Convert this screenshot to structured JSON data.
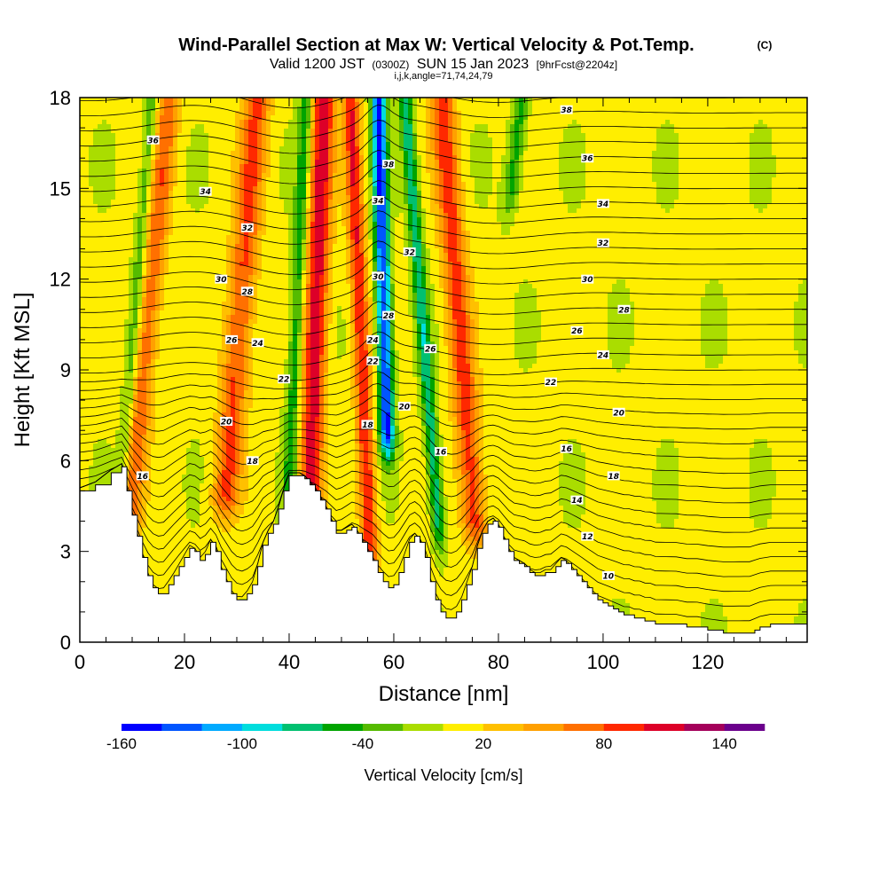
{
  "header": {
    "title": "Wind-Parallel Section at Max W: Vertical Velocity & Pot.Temp.",
    "copyright": "(C)",
    "valid_prefix": "Valid 1200 JST",
    "valid_utc": "(0300Z)",
    "valid_date": "SUN 15 Jan 2023",
    "forecast_info": "[9hrFcst@2204z]",
    "indices": "i,j,k,angle=71,74,24,79"
  },
  "chart_data": {
    "type": "heatmap",
    "xlabel": "Distance [nm]",
    "ylabel": "Height [Kft MSL]",
    "xlim": [
      0,
      139
    ],
    "ylim": [
      0,
      18
    ],
    "x_ticks": [
      "0",
      "20",
      "40",
      "60",
      "80",
      "100",
      "120"
    ],
    "x_tick_values": [
      0,
      20,
      40,
      60,
      80,
      100,
      120
    ],
    "y_ticks": [
      "0",
      "3",
      "6",
      "9",
      "12",
      "15",
      "18"
    ],
    "y_tick_values": [
      0,
      3,
      6,
      9,
      12,
      15,
      18
    ],
    "background_value": 5,
    "updrafts": [
      {
        "x_base": 10,
        "tilt": 0.55,
        "width": 2.2,
        "amp": 70,
        "z_bottom": 4
      },
      {
        "x_base": 28,
        "tilt": 0.45,
        "width": 2.6,
        "amp": 80,
        "z_bottom": 5
      },
      {
        "x_base": 44,
        "tilt": 0.2,
        "width": 2.2,
        "amp": 110,
        "z_bottom": 4
      },
      {
        "x_base": 55,
        "tilt": -0.25,
        "width": 1.6,
        "amp": 95,
        "z_bottom": 3
      },
      {
        "x_base": 75,
        "tilt": -0.45,
        "width": 2.4,
        "amp": 85,
        "z_bottom": 4
      }
    ],
    "downdrafts": [
      {
        "x_base": 8,
        "tilt": 0.45,
        "width": 1.2,
        "amp": -45,
        "z_bottom": 5
      },
      {
        "x_base": 40,
        "tilt": 0.25,
        "width": 1.3,
        "amp": -60,
        "z_bottom": 5
      },
      {
        "x_base": 59,
        "tilt": -0.15,
        "width": 1.4,
        "amp": -150,
        "z_bottom": 7
      },
      {
        "x_base": 68,
        "tilt": -0.45,
        "width": 1.3,
        "amp": -80,
        "z_bottom": 4
      },
      {
        "x_base": 76,
        "tilt": 0.65,
        "width": 1.5,
        "amp": -55,
        "z_bottom": 15
      }
    ],
    "terrain_kft": [
      [
        0,
        5.0
      ],
      [
        3,
        5.2
      ],
      [
        6,
        5.6
      ],
      [
        8,
        5.8
      ],
      [
        9,
        5.0
      ],
      [
        10,
        4.2
      ],
      [
        11,
        3.5
      ],
      [
        12,
        2.8
      ],
      [
        13,
        2.2
      ],
      [
        14,
        1.8
      ],
      [
        15,
        1.6
      ],
      [
        16,
        1.6
      ],
      [
        17,
        1.9
      ],
      [
        18,
        2.2
      ],
      [
        19,
        2.5
      ],
      [
        20,
        2.8
      ],
      [
        21,
        3.1
      ],
      [
        22,
        3.0
      ],
      [
        23,
        2.7
      ],
      [
        24,
        2.9
      ],
      [
        25,
        3.3
      ],
      [
        26,
        3.0
      ],
      [
        27,
        2.4
      ],
      [
        28,
        2.0
      ],
      [
        29,
        1.6
      ],
      [
        30,
        1.4
      ],
      [
        31,
        1.4
      ],
      [
        32,
        1.6
      ],
      [
        33,
        1.9
      ],
      [
        34,
        2.5
      ],
      [
        35,
        3.2
      ],
      [
        36,
        3.6
      ],
      [
        37,
        3.9
      ],
      [
        38,
        4.4
      ],
      [
        39,
        5.0
      ],
      [
        40,
        5.5
      ],
      [
        41,
        5.5
      ],
      [
        42,
        5.5
      ],
      [
        43,
        5.4
      ],
      [
        44,
        5.2
      ],
      [
        45,
        5.0
      ],
      [
        46,
        4.7
      ],
      [
        47,
        4.4
      ],
      [
        48,
        4.0
      ],
      [
        49,
        3.6
      ],
      [
        50,
        3.6
      ],
      [
        51,
        3.7
      ],
      [
        52,
        3.8
      ],
      [
        53,
        3.6
      ],
      [
        54,
        3.3
      ],
      [
        55,
        3.0
      ],
      [
        56,
        2.7
      ],
      [
        57,
        2.3
      ],
      [
        58,
        2.0
      ],
      [
        59,
        1.8
      ],
      [
        60,
        1.9
      ],
      [
        61,
        2.3
      ],
      [
        62,
        2.8
      ],
      [
        63,
        3.3
      ],
      [
        64,
        3.5
      ],
      [
        65,
        3.3
      ],
      [
        66,
        2.8
      ],
      [
        67,
        2.0
      ],
      [
        68,
        1.4
      ],
      [
        69,
        1.0
      ],
      [
        70,
        0.8
      ],
      [
        71,
        0.8
      ],
      [
        72,
        1.0
      ],
      [
        73,
        1.4
      ],
      [
        74,
        1.9
      ],
      [
        75,
        2.4
      ],
      [
        76,
        3.1
      ],
      [
        77,
        3.6
      ],
      [
        78,
        3.9
      ],
      [
        79,
        4.0
      ],
      [
        80,
        3.8
      ],
      [
        81,
        3.4
      ],
      [
        82,
        3.0
      ],
      [
        83,
        2.7
      ],
      [
        84,
        2.6
      ],
      [
        85,
        2.5
      ],
      [
        86,
        2.3
      ],
      [
        87,
        2.2
      ],
      [
        88,
        2.2
      ],
      [
        89,
        2.3
      ],
      [
        90,
        2.3
      ],
      [
        91,
        2.5
      ],
      [
        92,
        2.7
      ],
      [
        93,
        2.6
      ],
      [
        94,
        2.4
      ],
      [
        95,
        2.2
      ],
      [
        96,
        2.0
      ],
      [
        97,
        1.8
      ],
      [
        98,
        1.6
      ],
      [
        99,
        1.4
      ],
      [
        100,
        1.3
      ],
      [
        101,
        1.2
      ],
      [
        102,
        1.1
      ],
      [
        103,
        1.0
      ],
      [
        104,
        0.9
      ],
      [
        105,
        0.9
      ],
      [
        106,
        0.8
      ],
      [
        107,
        0.8
      ],
      [
        108,
        0.7
      ],
      [
        109,
        0.7
      ],
      [
        110,
        0.6
      ],
      [
        112,
        0.6
      ],
      [
        114,
        0.6
      ],
      [
        116,
        0.5
      ],
      [
        118,
        0.5
      ],
      [
        120,
        0.4
      ],
      [
        123,
        0.3
      ],
      [
        126,
        0.3
      ],
      [
        128,
        0.3
      ],
      [
        129,
        0.4
      ],
      [
        130,
        0.5
      ],
      [
        132,
        0.6
      ],
      [
        135,
        0.6
      ],
      [
        139,
        0.6
      ]
    ],
    "isentrope_labels": [
      {
        "text": "36",
        "x": 14,
        "z": 16.6
      },
      {
        "text": "34",
        "x": 24,
        "z": 14.9
      },
      {
        "text": "32",
        "x": 32,
        "z": 13.7
      },
      {
        "text": "30",
        "x": 27,
        "z": 12.0
      },
      {
        "text": "28",
        "x": 32,
        "z": 11.6
      },
      {
        "text": "26",
        "x": 29,
        "z": 10.0
      },
      {
        "text": "24",
        "x": 34,
        "z": 9.9
      },
      {
        "text": "22",
        "x": 39,
        "z": 8.7
      },
      {
        "text": "20",
        "x": 28,
        "z": 7.3
      },
      {
        "text": "18",
        "x": 33,
        "z": 6.0
      },
      {
        "text": "16",
        "x": 12,
        "z": 5.5
      },
      {
        "text": "38",
        "x": 59,
        "z": 15.8
      },
      {
        "text": "34",
        "x": 57,
        "z": 14.6
      },
      {
        "text": "32",
        "x": 63,
        "z": 12.9
      },
      {
        "text": "30",
        "x": 57,
        "z": 12.1
      },
      {
        "text": "28",
        "x": 59,
        "z": 10.8
      },
      {
        "text": "26",
        "x": 67,
        "z": 9.7
      },
      {
        "text": "24",
        "x": 56,
        "z": 10.0
      },
      {
        "text": "22",
        "x": 56,
        "z": 9.3
      },
      {
        "text": "20",
        "x": 62,
        "z": 7.8
      },
      {
        "text": "18",
        "x": 55,
        "z": 7.2
      },
      {
        "text": "16",
        "x": 69,
        "z": 6.3
      },
      {
        "text": "38",
        "x": 93,
        "z": 17.6
      },
      {
        "text": "36",
        "x": 97,
        "z": 16.0
      },
      {
        "text": "34",
        "x": 100,
        "z": 14.5
      },
      {
        "text": "32",
        "x": 100,
        "z": 13.2
      },
      {
        "text": "30",
        "x": 97,
        "z": 12.0
      },
      {
        "text": "28",
        "x": 104,
        "z": 11.0
      },
      {
        "text": "26",
        "x": 95,
        "z": 10.3
      },
      {
        "text": "24",
        "x": 100,
        "z": 9.5
      },
      {
        "text": "22",
        "x": 90,
        "z": 8.6
      },
      {
        "text": "20",
        "x": 103,
        "z": 7.6
      },
      {
        "text": "16",
        "x": 93,
        "z": 6.4
      },
      {
        "text": "18",
        "x": 102,
        "z": 5.5
      },
      {
        "text": "14",
        "x": 95,
        "z": 4.7
      },
      {
        "text": "12",
        "x": 97,
        "z": 3.5
      },
      {
        "text": "10",
        "x": 101,
        "z": 2.2
      }
    ]
  },
  "colorbar": {
    "title": "Vertical Velocity [cm/s]",
    "min": -160,
    "max": 160,
    "step": 20,
    "tick_labels": [
      {
        "text": "-160",
        "value": -160
      },
      {
        "text": "-100",
        "value": -100
      },
      {
        "text": "-40",
        "value": -40
      },
      {
        "text": "20",
        "value": 20
      },
      {
        "text": "80",
        "value": 80
      },
      {
        "text": "140",
        "value": 140
      }
    ],
    "colors": [
      "#0000ff",
      "#0055ff",
      "#00aaff",
      "#00dddd",
      "#00c070",
      "#00a400",
      "#55bb00",
      "#aadd00",
      "#ffee00",
      "#ffc000",
      "#ffa000",
      "#ff7000",
      "#ff2800",
      "#dd0028",
      "#a4005a",
      "#6b008c"
    ]
  }
}
